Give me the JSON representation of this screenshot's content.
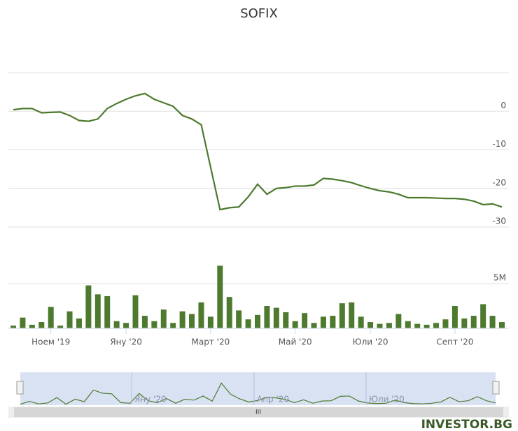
{
  "chart_data": {
    "type": "stock",
    "title": "SOFIX",
    "categories": [
      null,
      null,
      null,
      null,
      "Ноем '19",
      null,
      null,
      null,
      null,
      null,
      null,
      null,
      "Яну '20",
      null,
      null,
      null,
      null,
      null,
      null,
      null,
      null,
      "Март '20",
      null,
      null,
      null,
      null,
      null,
      null,
      null,
      null,
      "Май '20",
      null,
      null,
      null,
      null,
      null,
      null,
      null,
      "Юли '20",
      null,
      null,
      null,
      null,
      null,
      null,
      null,
      null,
      "Септ '20",
      null,
      null,
      null,
      null,
      null
    ],
    "series": [
      {
        "type": "line",
        "color": "#4d7a2e",
        "ylim": [
          -30,
          10
        ],
        "yticks": [
          -30,
          -20,
          -10,
          0
        ],
        "values": [
          0.4,
          0.7,
          0.7,
          -0.4,
          -0.3,
          -0.2,
          -1.1,
          -2.4,
          -2.6,
          -2.0,
          0.7,
          2.0,
          3.1,
          4.0,
          4.6,
          3.1,
          2.2,
          1.3,
          -1.1,
          -2.0,
          -3.5,
          -14.5,
          -25.5,
          -25.0,
          -24.8,
          -22.2,
          -18.9,
          -21.5,
          -20.0,
          -19.8,
          -19.4,
          -19.4,
          -19.1,
          -17.4,
          -17.6,
          -18.0,
          -18.5,
          -19.3,
          -20.0,
          -20.6,
          -20.9,
          -21.5,
          -22.4,
          -22.4,
          -22.4,
          -22.5,
          -22.6,
          -22.6,
          -22.8,
          -23.3,
          -24.2,
          -24.0,
          -24.8
        ]
      },
      {
        "type": "bar",
        "color": "#4d7a2e",
        "ylim": [
          0,
          10000000
        ],
        "yticks": [
          {
            "value": 5000000,
            "label": "5M"
          }
        ],
        "values": [
          300000,
          1200000,
          400000,
          700000,
          2400000,
          300000,
          1900000,
          1100000,
          4800000,
          3800000,
          3600000,
          800000,
          600000,
          3700000,
          1400000,
          800000,
          2100000,
          600000,
          1900000,
          1600000,
          2900000,
          1300000,
          7000000,
          3500000,
          2000000,
          1000000,
          1500000,
          2500000,
          2300000,
          1800000,
          800000,
          1700000,
          600000,
          1300000,
          1400000,
          2800000,
          2900000,
          1300000,
          700000,
          500000,
          600000,
          1600000,
          800000,
          500000,
          400000,
          600000,
          1000000,
          2500000,
          1100000,
          1400000,
          2700000,
          1400000,
          700000
        ]
      }
    ],
    "navigator": {
      "labels": [
        "Яну '20",
        "Апр '20",
        "Юли '20"
      ],
      "color": "#4d7a2e",
      "mask": "#c7d5ec"
    },
    "watermark": "INVESTOR.BG"
  }
}
